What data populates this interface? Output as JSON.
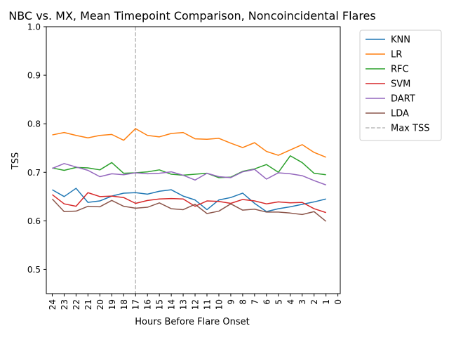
{
  "chart_data": {
    "type": "line",
    "title": "NBC vs. MX, Mean Timepoint Comparison, Noncoincidental Flares",
    "xlabel": "Hours Before Flare Onset",
    "ylabel": "TSS",
    "x": [
      24,
      23,
      22,
      21,
      20,
      19,
      18,
      17,
      16,
      15,
      14,
      13,
      12,
      11,
      10,
      9,
      8,
      7,
      6,
      5,
      4,
      3,
      2,
      1
    ],
    "x_ticks": [
      24,
      23,
      22,
      21,
      20,
      19,
      18,
      17,
      16,
      15,
      14,
      13,
      12,
      11,
      10,
      9,
      8,
      7,
      6,
      5,
      4,
      3,
      2,
      1,
      0
    ],
    "xlim": [
      24.5,
      -0.2
    ],
    "ylim": [
      0.45,
      1.0
    ],
    "y_ticks": [
      0.5,
      0.6,
      0.7,
      0.8,
      0.9,
      1.0
    ],
    "y_tick_labels": [
      "0.5",
      "0.6",
      "0.7",
      "0.8",
      "0.9",
      "1.0"
    ],
    "grid": false,
    "legend_position": "outside right",
    "series": [
      {
        "name": "KNN",
        "color": "#1f77b4",
        "values": [
          0.664,
          0.65,
          0.667,
          0.638,
          0.641,
          0.651,
          0.657,
          0.658,
          0.655,
          0.661,
          0.664,
          0.651,
          0.643,
          0.623,
          0.643,
          0.648,
          0.657,
          0.636,
          0.619,
          0.625,
          0.629,
          0.634,
          0.639,
          0.645
        ]
      },
      {
        "name": "LR",
        "color": "#ff7f0e",
        "values": [
          0.777,
          0.782,
          0.776,
          0.771,
          0.776,
          0.778,
          0.766,
          0.79,
          0.776,
          0.773,
          0.78,
          0.782,
          0.769,
          0.768,
          0.77,
          0.76,
          0.751,
          0.761,
          0.743,
          0.735,
          0.746,
          0.757,
          0.741,
          0.731
        ]
      },
      {
        "name": "RFC",
        "color": "#2ca02c",
        "values": [
          0.709,
          0.704,
          0.71,
          0.709,
          0.705,
          0.72,
          0.698,
          0.699,
          0.701,
          0.705,
          0.696,
          0.694,
          0.696,
          0.698,
          0.689,
          0.69,
          0.702,
          0.707,
          0.716,
          0.7,
          0.734,
          0.72,
          0.698,
          0.695
        ]
      },
      {
        "name": "SVM",
        "color": "#d62728",
        "values": [
          0.654,
          0.635,
          0.63,
          0.658,
          0.65,
          0.651,
          0.648,
          0.636,
          0.642,
          0.645,
          0.646,
          0.645,
          0.63,
          0.641,
          0.64,
          0.636,
          0.644,
          0.641,
          0.635,
          0.639,
          0.637,
          0.638,
          0.625,
          0.617
        ]
      },
      {
        "name": "DART",
        "color": "#9467bd",
        "values": [
          0.708,
          0.718,
          0.711,
          0.704,
          0.691,
          0.697,
          0.695,
          0.699,
          0.697,
          0.698,
          0.701,
          0.694,
          0.684,
          0.698,
          0.691,
          0.689,
          0.701,
          0.706,
          0.686,
          0.699,
          0.697,
          0.693,
          0.683,
          0.674
        ]
      },
      {
        "name": "LDA",
        "color": "#8c564b",
        "values": [
          0.645,
          0.619,
          0.62,
          0.63,
          0.629,
          0.642,
          0.63,
          0.626,
          0.628,
          0.637,
          0.625,
          0.623,
          0.634,
          0.615,
          0.62,
          0.635,
          0.622,
          0.624,
          0.618,
          0.618,
          0.616,
          0.613,
          0.619,
          0.599
        ]
      }
    ],
    "reference_lines": [
      {
        "name": "Max TSS",
        "x": 17,
        "color": "#bbbbbb",
        "style": "dashed"
      }
    ]
  }
}
